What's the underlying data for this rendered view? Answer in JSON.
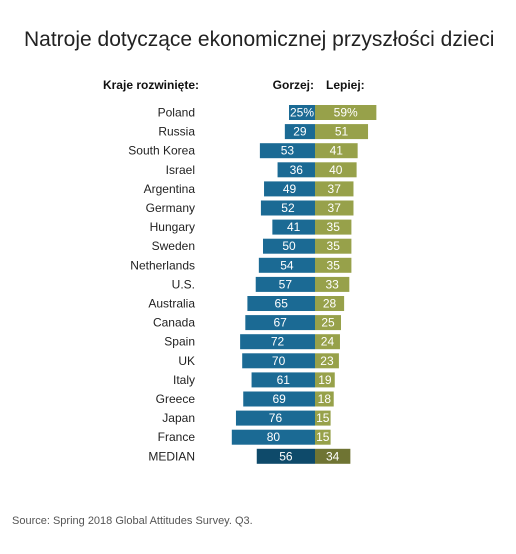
{
  "title": "Natroje dotyczące ekonomicznej przyszłości dzieci",
  "headers": {
    "countries": "Kraje rozwinięte:",
    "worse": "Gorzej:",
    "better": "Lepiej:"
  },
  "source": "Source: Spring 2018 Global Attitudes Survey. Q3.",
  "colors": {
    "worse": "#1b6a94",
    "better": "#97a14a",
    "median_worse": "#0e4a6a",
    "median_better": "#6f7433"
  },
  "chart_data": {
    "type": "bar",
    "orientation": "horizontal-diverging",
    "categories": [
      "Poland",
      "Russia",
      "South Korea",
      "Israel",
      "Argentina",
      "Germany",
      "Hungary",
      "Sweden",
      "Netherlands",
      "U.S.",
      "Australia",
      "Canada",
      "Spain",
      "UK",
      "Italy",
      "Greece",
      "Japan",
      "France",
      "MEDIAN"
    ],
    "series": [
      {
        "name": "Gorzej:",
        "values": [
          25,
          29,
          53,
          36,
          49,
          52,
          41,
          50,
          54,
          57,
          65,
          67,
          72,
          70,
          61,
          69,
          76,
          80,
          56
        ]
      },
      {
        "name": "Lepiej:",
        "values": [
          59,
          51,
          41,
          40,
          37,
          37,
          35,
          35,
          35,
          33,
          28,
          25,
          24,
          23,
          19,
          18,
          15,
          15,
          34
        ]
      }
    ],
    "value_labels": {
      "worse": [
        "25%",
        "29",
        "53",
        "36",
        "49",
        "52",
        "41",
        "50",
        "54",
        "57",
        "65",
        "67",
        "72",
        "70",
        "61",
        "69",
        "76",
        "80",
        "56"
      ],
      "better": [
        "59%",
        "51",
        "41",
        "40",
        "37",
        "37",
        "35",
        "35",
        "35",
        "33",
        "28",
        "25",
        "24",
        "23",
        "19",
        "18",
        "15",
        "15",
        "34"
      ]
    }
  }
}
